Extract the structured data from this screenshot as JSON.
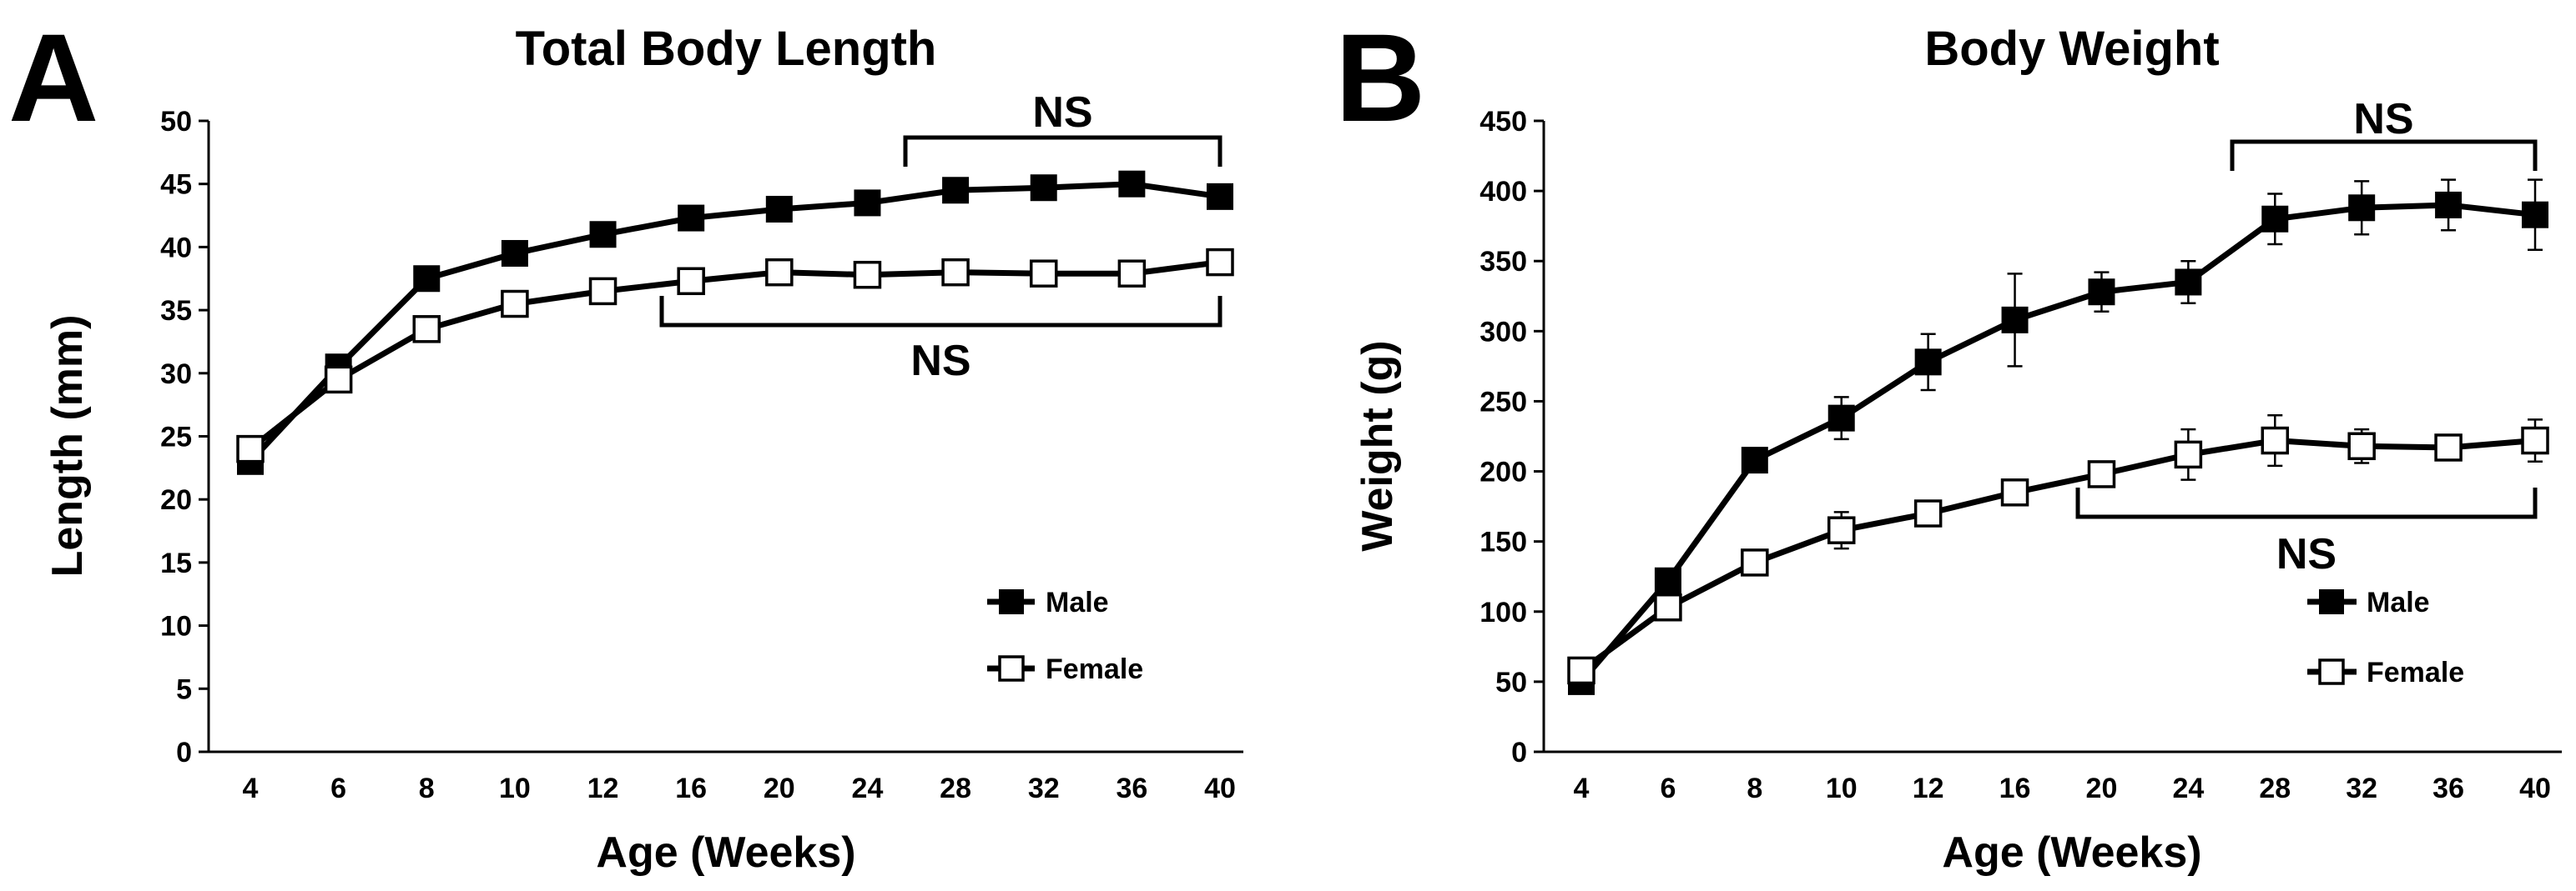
{
  "chart_data": [
    {
      "type": "line",
      "panel": "A",
      "title": "Total Body Length",
      "xlabel": "Age (Weeks)",
      "ylabel": "Length (mm)",
      "categories": [
        "4",
        "6",
        "8",
        "10",
        "12",
        "16",
        "20",
        "24",
        "28",
        "32",
        "36",
        "40"
      ],
      "ylim": [
        0,
        50
      ],
      "yticks": [
        0,
        5,
        10,
        15,
        20,
        25,
        30,
        35,
        40,
        45,
        50
      ],
      "legend_position": "bottom-right",
      "series": [
        {
          "name": "Male",
          "marker": "filled-square",
          "color": "#000000",
          "values": [
            23,
            30.5,
            37.5,
            39.5,
            41,
            42.3,
            43,
            43.5,
            44.5,
            44.7,
            45,
            44
          ],
          "errors": [
            0.4,
            0.5,
            0.5,
            0.5,
            0.5,
            0.5,
            0.5,
            0.5,
            0.6,
            0.6,
            0.6,
            0.6
          ]
        },
        {
          "name": "Female",
          "marker": "open-square",
          "color": "#ffffff",
          "values": [
            24,
            29.5,
            33.5,
            35.5,
            36.5,
            37.3,
            38,
            37.8,
            38,
            37.9,
            37.9,
            38.8
          ],
          "errors": [
            0.4,
            0.5,
            0.5,
            0.5,
            0.5,
            0.5,
            0.5,
            0.5,
            0.5,
            0.5,
            0.5,
            0.5
          ]
        }
      ],
      "annotations": [
        {
          "label": "NS",
          "series": "Male",
          "from_category": "28",
          "to_category": "40",
          "side": "above"
        },
        {
          "label": "NS",
          "series": "Female",
          "from_category": "16",
          "to_category": "40",
          "side": "below"
        }
      ]
    },
    {
      "type": "line",
      "panel": "B",
      "title": "Body Weight",
      "xlabel": "Age (Weeks)",
      "ylabel": "Weight (g)",
      "categories": [
        "4",
        "6",
        "8",
        "10",
        "12",
        "16",
        "20",
        "24",
        "28",
        "32",
        "36",
        "40"
      ],
      "ylim": [
        0,
        450
      ],
      "yticks": [
        0,
        50,
        100,
        150,
        200,
        250,
        300,
        350,
        400,
        450
      ],
      "legend_position": "bottom-right",
      "series": [
        {
          "name": "Male",
          "marker": "filled-square",
          "color": "#000000",
          "values": [
            50,
            122,
            208,
            238,
            278,
            308,
            328,
            335,
            380,
            388,
            390,
            383
          ],
          "errors": [
            4,
            8,
            8,
            15,
            20,
            33,
            14,
            15,
            18,
            19,
            18,
            25
          ]
        },
        {
          "name": "Female",
          "marker": "open-square",
          "color": "#ffffff",
          "values": [
            58,
            103,
            135,
            158,
            170,
            185,
            198,
            212,
            222,
            218,
            217,
            222
          ],
          "errors": [
            4,
            6,
            6,
            13,
            8,
            8,
            8,
            18,
            18,
            12,
            6,
            15
          ]
        }
      ],
      "annotations": [
        {
          "label": "NS",
          "series": "Male",
          "from_category": "28",
          "to_category": "40",
          "side": "above"
        },
        {
          "label": "NS",
          "series": "Female",
          "from_category": "20",
          "to_category": "40",
          "side": "below"
        }
      ]
    }
  ]
}
